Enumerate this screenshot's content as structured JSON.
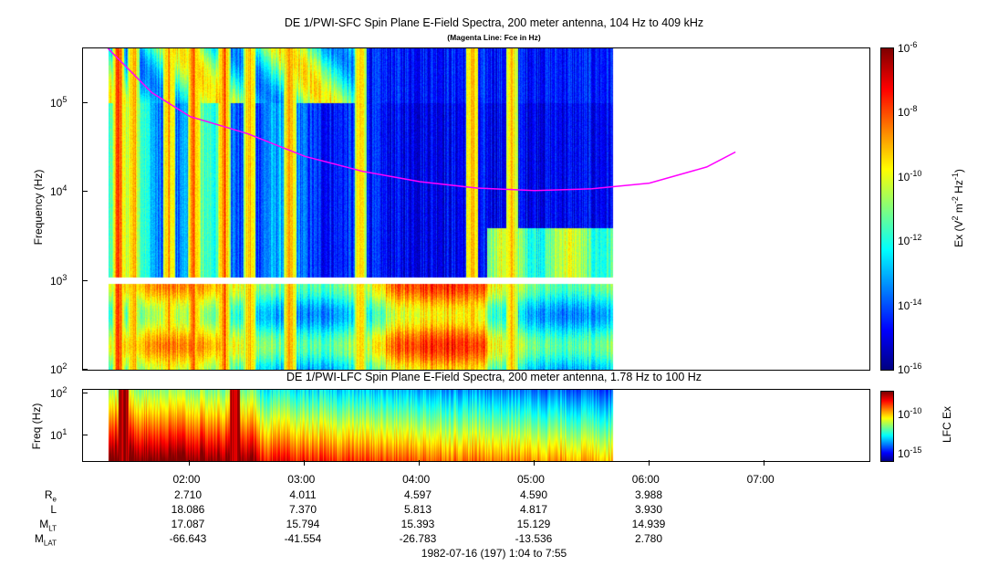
{
  "titles": {
    "main": "DE 1/PWI-SFC  Spin Plane E-Field Spectra, 200 meter antenna, 104 Hz to 409 kHz",
    "sub": "(Magenta Line: Fce in Hz)",
    "lower": "DE 1/PWI-LFC  Spin Plane E-Field Spectra, 200 meter antenna, 1.78 Hz to 100 Hz"
  },
  "date_range": "1982-07-16 (197) 1:04 to 7:55",
  "chart_data": [
    {
      "type": "heatmap",
      "title": "DE 1/PWI-SFC  Spin Plane E-Field Spectra, 200 meter antenna, 104 Hz to 409 kHz",
      "subtitle": "(Magenta Line: Fce in Hz)",
      "ylabel": "Frequency (Hz)",
      "yscale": "log",
      "ylim": [
        100,
        409000
      ],
      "xlim": [
        "01:04",
        "07:55"
      ],
      "data_extent": [
        "01:17",
        "05:41"
      ],
      "yticks": [
        {
          "value": 100,
          "base": "10",
          "exp": "2"
        },
        {
          "value": 1000,
          "base": "10",
          "exp": "3"
        },
        {
          "value": 10000,
          "base": "10",
          "exp": "4"
        },
        {
          "value": 100000,
          "base": "10",
          "exp": "5"
        }
      ],
      "colorbar": {
        "label_main": "Ex (V",
        "label_exp1": "2",
        "label_mid": " m",
        "label_exp2": "-2",
        "label_mid2": " Hz",
        "label_exp3": "-1",
        "label_end": ")",
        "scale": "log",
        "range": [
          1e-16,
          1e-06
        ],
        "ticks": [
          {
            "value": 1e-06,
            "base": "10",
            "exp": "-6"
          },
          {
            "value": 1e-08,
            "base": "10",
            "exp": "-8"
          },
          {
            "value": 1e-10,
            "base": "10",
            "exp": "-10"
          },
          {
            "value": 1e-12,
            "base": "10",
            "exp": "-12"
          },
          {
            "value": 1e-14,
            "base": "10",
            "exp": "-14"
          },
          {
            "value": 1e-16,
            "base": "10",
            "exp": "-16"
          }
        ]
      },
      "series": [
        {
          "name": "Fce",
          "color": "#ff00ff",
          "x": [
            "01:17",
            "01:40",
            "02:00",
            "02:30",
            "03:00",
            "03:30",
            "04:00",
            "04:30",
            "05:00",
            "05:30",
            "06:00",
            "06:30",
            "06:45"
          ],
          "y": [
            409000,
            130000,
            70000,
            45000,
            25000,
            17000,
            13000,
            11000,
            10300,
            10800,
            12500,
            19000,
            28000
          ]
        }
      ]
    },
    {
      "type": "heatmap",
      "title": "DE 1/PWI-LFC  Spin Plane E-Field Spectra, 200 meter antenna, 1.78 Hz to 100 Hz",
      "ylabel": "Freq (Hz)",
      "yscale": "log",
      "ylim": [
        2.5,
        120
      ],
      "xlim": [
        "01:04",
        "07:55"
      ],
      "data_extent": [
        "01:17",
        "05:41"
      ],
      "yticks": [
        {
          "value": 10,
          "base": "10",
          "exp": "1"
        },
        {
          "value": 100,
          "base": "10",
          "exp": "2"
        }
      ],
      "colorbar": {
        "label": "LFC Ex",
        "scale": "log",
        "range": [
          1e-16,
          1e-07
        ],
        "ticks": [
          {
            "value": 1e-10,
            "base": "10",
            "exp": "-10"
          },
          {
            "value": 1e-15,
            "base": "10",
            "exp": "-15"
          }
        ]
      }
    }
  ],
  "x_ticks": [
    "02:00",
    "03:00",
    "04:00",
    "05:00",
    "06:00",
    "07:00"
  ],
  "ephemeris": {
    "rows": [
      {
        "label_main": "R",
        "label_sub": "e",
        "values": [
          "2.710",
          "4.011",
          "4.597",
          "4.590",
          "3.988"
        ]
      },
      {
        "label_main": "L",
        "label_sub": "",
        "values": [
          "18.086",
          "7.370",
          "5.813",
          "4.817",
          "3.930"
        ]
      },
      {
        "label_main": "M",
        "label_sub": "LT",
        "values": [
          "17.087",
          "15.794",
          "15.393",
          "15.129",
          "14.939"
        ]
      },
      {
        "label_main": "M",
        "label_sub": "LAT",
        "values": [
          "-66.643",
          "-41.554",
          "-26.783",
          "-13.536",
          "2.780"
        ]
      }
    ]
  }
}
